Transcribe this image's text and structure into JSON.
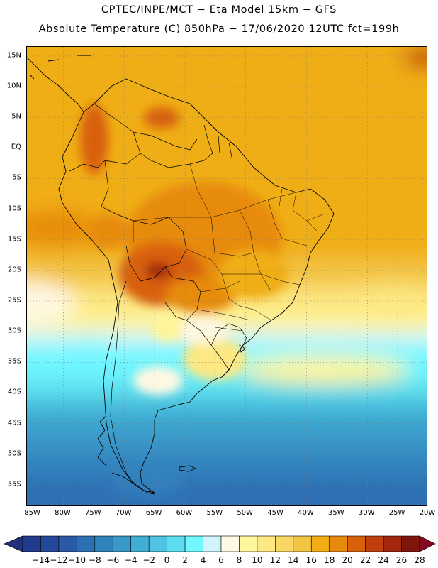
{
  "header": {
    "line1": "CPTEC/INPE/MCT −  Eta Model 15km − GFS",
    "line2": "Absolute Temperature (C) 850hPa − 17/06/2020 12UTC fct=199h"
  },
  "map": {
    "region": "South America",
    "lat_ticks": [
      {
        "label": "15N",
        "lat": 15
      },
      {
        "label": "10N",
        "lat": 10
      },
      {
        "label": "5N",
        "lat": 5
      },
      {
        "label": "EQ",
        "lat": 0
      },
      {
        "label": "5S",
        "lat": -5
      },
      {
        "label": "10S",
        "lat": -10
      },
      {
        "label": "15S",
        "lat": -15
      },
      {
        "label": "20S",
        "lat": -20
      },
      {
        "label": "25S",
        "lat": -25
      },
      {
        "label": "30S",
        "lat": -30
      },
      {
        "label": "35S",
        "lat": -35
      },
      {
        "label": "40S",
        "lat": -40
      },
      {
        "label": "45S",
        "lat": -45
      },
      {
        "label": "50S",
        "lat": -50
      },
      {
        "label": "55S",
        "lat": -55
      }
    ],
    "lon_ticks": [
      {
        "label": "85W",
        "lon": -85
      },
      {
        "label": "80W",
        "lon": -80
      },
      {
        "label": "75W",
        "lon": -75
      },
      {
        "label": "70W",
        "lon": -70
      },
      {
        "label": "65W",
        "lon": -65
      },
      {
        "label": "60W",
        "lon": -60
      },
      {
        "label": "55W",
        "lon": -55
      },
      {
        "label": "50W",
        "lon": -50
      },
      {
        "label": "45W",
        "lon": -45
      },
      {
        "label": "40W",
        "lon": -40
      },
      {
        "label": "35W",
        "lon": -35
      },
      {
        "label": "30W",
        "lon": -30
      },
      {
        "label": "25W",
        "lon": -25
      },
      {
        "label": "20W",
        "lon": -20
      }
    ],
    "lon_range": [
      -86,
      -20
    ],
    "lat_range": [
      16.5,
      -58.5
    ]
  },
  "colorbar": {
    "labels": [
      "−14",
      "−12",
      "−10",
      "−8",
      "−6",
      "−4",
      "−2",
      "0",
      "2",
      "4",
      "6",
      "8",
      "10",
      "12",
      "14",
      "16",
      "18",
      "20",
      "22",
      "24",
      "26",
      "28"
    ],
    "colors": [
      "#1f3b8f",
      "#23489a",
      "#2a5aa6",
      "#2d6fb3",
      "#3183bd",
      "#3a98c8",
      "#40aed4",
      "#4ec4e0",
      "#5cdcec",
      "#6ff6ff",
      "#cff4fb",
      "#fff8e2",
      "#fff59a",
      "#fde883",
      "#f8d865",
      "#f3c545",
      "#f0ae12",
      "#e78b0e",
      "#d8600b",
      "#c03d0c",
      "#a3250e",
      "#7f170f"
    ],
    "under_color": "#20307a",
    "over_color": "#86081f"
  }
}
